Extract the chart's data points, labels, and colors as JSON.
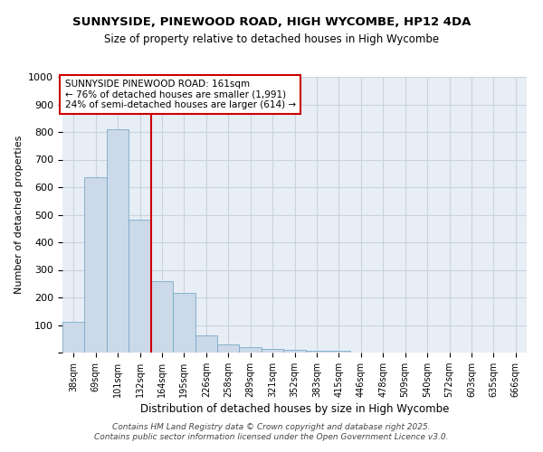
{
  "title1": "SUNNYSIDE, PINEWOOD ROAD, HIGH WYCOMBE, HP12 4DA",
  "title2": "Size of property relative to detached houses in High Wycombe",
  "xlabel": "Distribution of detached houses by size in High Wycombe",
  "ylabel": "Number of detached properties",
  "categories": [
    "38sqm",
    "69sqm",
    "101sqm",
    "132sqm",
    "164sqm",
    "195sqm",
    "226sqm",
    "258sqm",
    "289sqm",
    "321sqm",
    "352sqm",
    "383sqm",
    "415sqm",
    "446sqm",
    "478sqm",
    "509sqm",
    "540sqm",
    "572sqm",
    "603sqm",
    "635sqm",
    "666sqm"
  ],
  "values": [
    110,
    635,
    810,
    483,
    258,
    215,
    62,
    28,
    20,
    13,
    10,
    8,
    7,
    0,
    0,
    0,
    0,
    0,
    0,
    0,
    0
  ],
  "bar_color": "#ccd9e8",
  "bar_edge_color": "#7aaac8",
  "red_line_x": 3.5,
  "annotation_title": "SUNNYSIDE PINEWOOD ROAD: 161sqm",
  "annotation_line1": "← 76% of detached houses are smaller (1,991)",
  "annotation_line2": "24% of semi-detached houses are larger (614) →",
  "annotation_box_color": "#ffffff",
  "annotation_border_color": "#cc0000",
  "red_line_color": "#cc0000",
  "grid_color": "#c8d4e0",
  "background_color": "#e8eef5",
  "footer_line1": "Contains HM Land Registry data © Crown copyright and database right 2025.",
  "footer_line2": "Contains public sector information licensed under the Open Government Licence v3.0.",
  "ylim": [
    0,
    1000
  ],
  "yticks": [
    0,
    100,
    200,
    300,
    400,
    500,
    600,
    700,
    800,
    900,
    1000
  ]
}
